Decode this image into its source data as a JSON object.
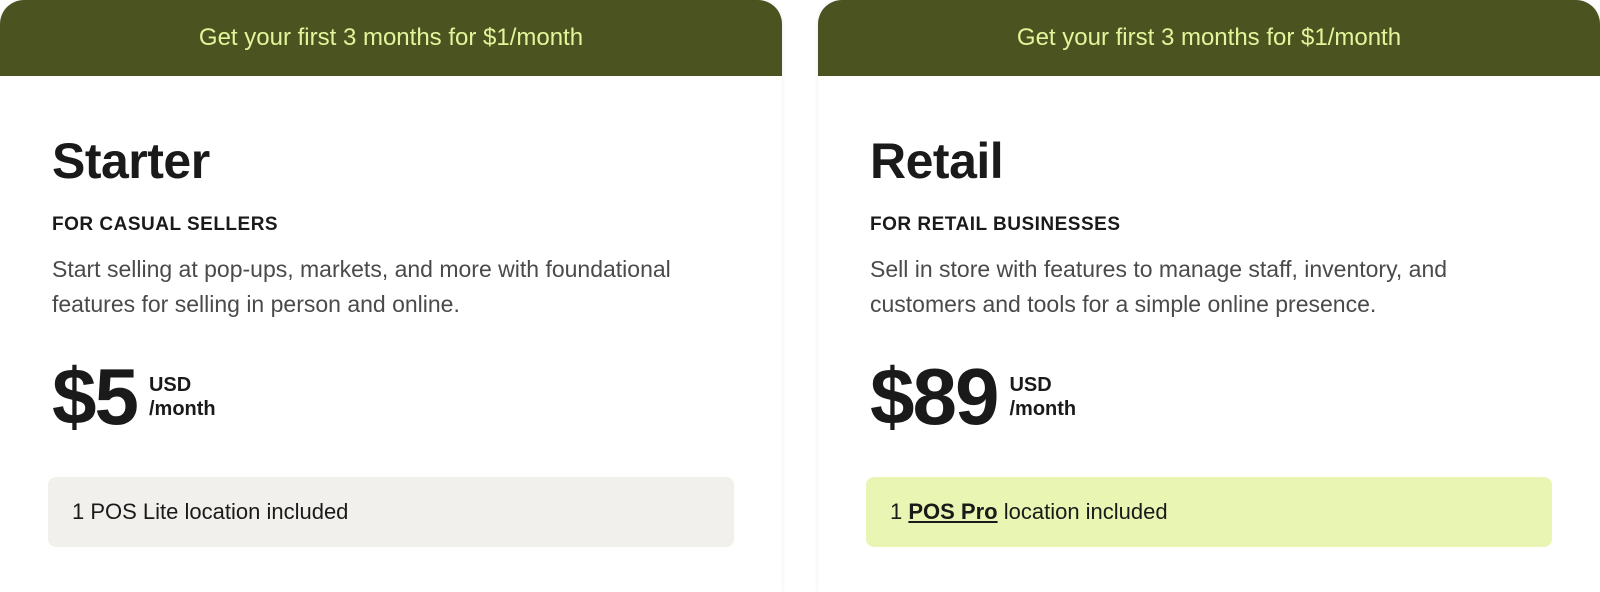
{
  "promo_text": "Get your first 3 months for $1/month",
  "colors": {
    "banner_bg": "#4b5320",
    "banner_text": "#e3f59a",
    "card_bg": "#ffffff",
    "text_primary": "#1a1a1a",
    "text_secondary": "#4a4a4a",
    "included_lite_bg": "#f1f0ec",
    "included_pro_bg": "#e9f5b2"
  },
  "plans": [
    {
      "name": "Starter",
      "audience": "FOR CASUAL SELLERS",
      "description": "Start selling at pop-ups, markets, and more with foundational features for selling in person and online.",
      "price": "$5",
      "currency": "USD",
      "period": "/month",
      "included_prefix": "1 ",
      "included_emph": "POS Lite",
      "included_suffix": " location included",
      "included_style": "lite",
      "emphasize": false
    },
    {
      "name": "Retail",
      "audience": "FOR RETAIL BUSINESSES",
      "description": "Sell in store with features to manage staff, inventory, and customers and tools for a simple online presence.",
      "price": "$89",
      "currency": "USD",
      "period": "/month",
      "included_prefix": "1 ",
      "included_emph": "POS Pro",
      "included_suffix": " location included",
      "included_style": "pro",
      "emphasize": true
    }
  ]
}
